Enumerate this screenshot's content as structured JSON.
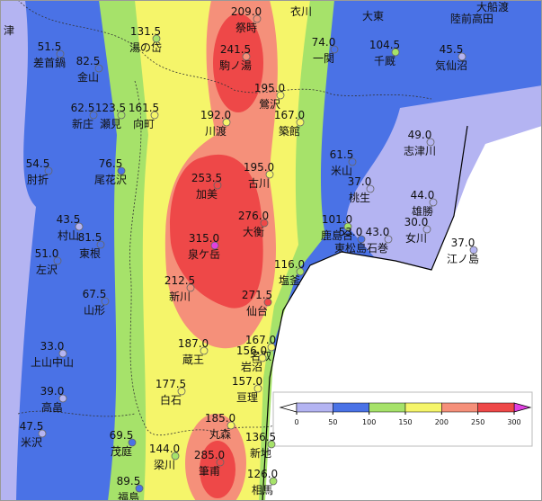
{
  "stations": [
    {
      "value": 51.5,
      "value_label": "51.5",
      "name": "差首鍋"
    },
    {
      "value": 82.5,
      "value_label": "82.5",
      "name": "金山"
    },
    {
      "value": 131.5,
      "value_label": "131.5",
      "name": "湯の岱"
    },
    {
      "value": 209.0,
      "value_label": "209.0",
      "name": "祭時"
    },
    {
      "value": 241.5,
      "value_label": "241.5",
      "name": "駒ノ湯"
    },
    {
      "value": 74.0,
      "value_label": "74.0",
      "name": "一関"
    },
    {
      "value": 104.5,
      "value_label": "104.5",
      "name": "千厩"
    },
    {
      "value": 45.5,
      "value_label": "45.5",
      "name": "気仙沼"
    },
    {
      "value": 62.5,
      "value_label": "62.5",
      "name": "新庄"
    },
    {
      "value": 123.5,
      "value_label": "123.5",
      "name": "瀬見"
    },
    {
      "value": 161.5,
      "value_label": "161.5",
      "name": "向町"
    },
    {
      "value": 195.0,
      "value_label": "195.0",
      "name": "鶯沢"
    },
    {
      "value": 192.0,
      "value_label": "192.0",
      "name": "川渡"
    },
    {
      "value": 167.0,
      "value_label": "167.0",
      "name": "築館"
    },
    {
      "value": 49.0,
      "value_label": "49.0",
      "name": "志津川"
    },
    {
      "value": 54.5,
      "value_label": "54.5",
      "name": "肘折"
    },
    {
      "value": 76.5,
      "value_label": "76.5",
      "name": "尾花沢"
    },
    {
      "value": 61.5,
      "value_label": "61.5",
      "name": "米山"
    },
    {
      "value": 253.5,
      "value_label": "253.5",
      "name": "加美"
    },
    {
      "value": 195.0,
      "value_label": "195.0",
      "name": "古川"
    },
    {
      "value": 37.0,
      "value_label": "37.0",
      "name": "桃生"
    },
    {
      "value": 44.0,
      "value_label": "44.0",
      "name": "雄勝"
    },
    {
      "value": 43.5,
      "value_label": "43.5",
      "name": "村山"
    },
    {
      "value": 81.5,
      "value_label": "81.5",
      "name": "東根"
    },
    {
      "value": 276.0,
      "value_label": "276.0",
      "name": "大衡"
    },
    {
      "value": 101.0,
      "value_label": "101.0",
      "name": "鹿島台"
    },
    {
      "value": 30.0,
      "value_label": "30.0",
      "name": "女川"
    },
    {
      "value": 315.0,
      "value_label": "315.0",
      "name": "泉ケ岳"
    },
    {
      "value": 53.0,
      "value_label": "53.0",
      "name": "東松島"
    },
    {
      "value": 43.0,
      "value_label": "43.0",
      "name": "石巻"
    },
    {
      "value": 37.0,
      "value_label": "37.0",
      "name": "江ノ島"
    },
    {
      "value": 51.0,
      "value_label": "51.0",
      "name": "左沢"
    },
    {
      "value": 116.0,
      "value_label": "116.0",
      "name": "塩釜"
    },
    {
      "value": 212.5,
      "value_label": "212.5",
      "name": "新川"
    },
    {
      "value": 271.5,
      "value_label": "271.5",
      "name": "仙台"
    },
    {
      "value": 67.5,
      "value_label": "67.5",
      "name": "山形"
    },
    {
      "value": 33.0,
      "value_label": "33.0",
      "name": "上山中山"
    },
    {
      "value": 187.0,
      "value_label": "187.0",
      "name": "蔵王"
    },
    {
      "value": 167.0,
      "value_label": "167.0",
      "name": "名取"
    },
    {
      "value": 156.0,
      "value_label": "156.0",
      "name": "岩沼"
    },
    {
      "value": 157.0,
      "value_label": "157.0",
      "name": "亘理"
    },
    {
      "value": 177.5,
      "value_label": "177.5",
      "name": "白石"
    },
    {
      "value": 39.0,
      "value_label": "39.0",
      "name": "高畠"
    },
    {
      "value": 185.0,
      "value_label": "185.0",
      "name": "丸森"
    },
    {
      "value": 136.5,
      "value_label": "136.5",
      "name": "新地"
    },
    {
      "value": 47.5,
      "value_label": "47.5",
      "name": "米沢"
    },
    {
      "value": 69.5,
      "value_label": "69.5",
      "name": "茂庭"
    },
    {
      "value": 144.0,
      "value_label": "144.0",
      "name": "梁川"
    },
    {
      "value": 285.0,
      "value_label": "285.0",
      "name": "筆甫"
    },
    {
      "value": 126.0,
      "value_label": "126.0",
      "name": "相馬"
    },
    {
      "value": 89.5,
      "value_label": "89.5",
      "name": "福島"
    }
  ],
  "place_names": [
    "津",
    "衣川",
    "大東",
    "陸前高田",
    "大船渡"
  ],
  "colorbar": {
    "ticks": [
      0,
      50,
      100,
      150,
      200,
      250,
      300
    ],
    "colors": [
      "#b4b4f2",
      "#4a72e6",
      "#a6e26a",
      "#f5f56a",
      "#f5907a",
      "#ee4848"
    ],
    "under_color": "#ffffff",
    "over_color": "#e040e0"
  }
}
